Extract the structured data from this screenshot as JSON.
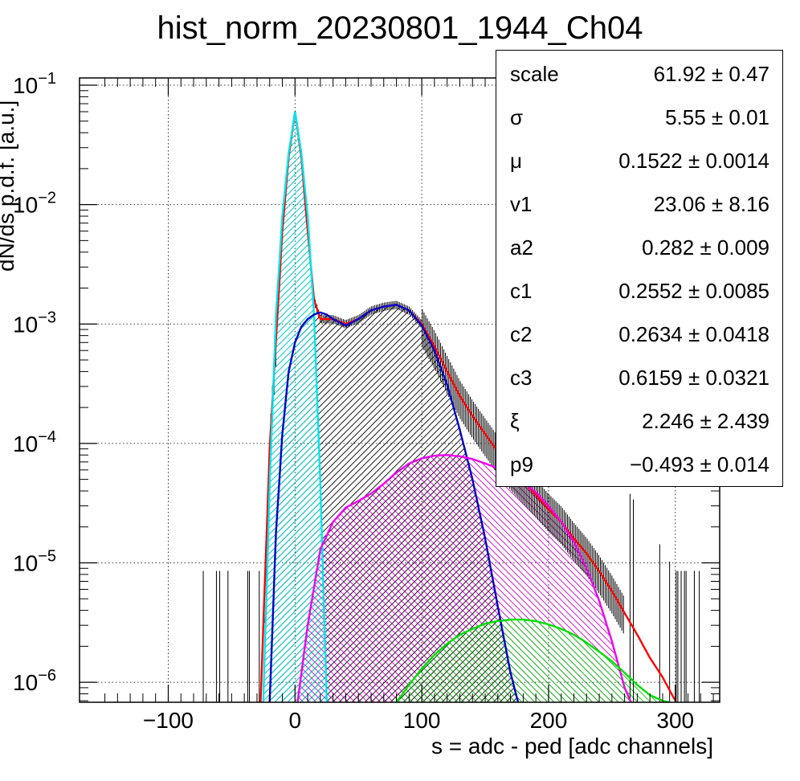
{
  "chart_data": {
    "type": "line",
    "title": "hist_norm_20230801_1944_Ch04",
    "xlabel": "s = adc - ped [adc channels]",
    "ylabel": "dN/ds p.d.f. [a.u.]",
    "xlim": [
      -170,
      335
    ],
    "ylim": [
      6.8e-07,
      0.115
    ],
    "yscale": "log",
    "grid": true,
    "x_ticks": [
      -100,
      0,
      100,
      200,
      300
    ],
    "x_tick_labels": [
      "−100",
      "0",
      "100",
      "200",
      "300"
    ],
    "y_ticks": [
      {
        "value": 1e-06,
        "base": "10",
        "exp": "−6"
      },
      {
        "value": 1e-05,
        "base": "10",
        "exp": "−5"
      },
      {
        "value": 0.0001,
        "base": "10",
        "exp": "−4"
      },
      {
        "value": 0.001,
        "base": "10",
        "exp": "−3"
      },
      {
        "value": 0.01,
        "base": "10",
        "exp": "−2"
      },
      {
        "value": 0.1,
        "base": "10",
        "exp": "−1"
      }
    ],
    "series": [
      {
        "color": "#ff0000",
        "x": [
          -30,
          -20,
          -10,
          -5,
          0,
          5,
          10,
          15,
          20,
          25,
          30,
          40,
          50,
          60,
          70,
          80,
          90,
          100,
          110,
          120,
          130,
          140,
          150,
          160,
          170,
          180,
          190,
          200,
          210,
          220,
          230,
          240,
          250,
          260,
          270,
          280,
          290,
          300
        ],
        "y": [
          1e-07,
          9e-05,
          0.006,
          0.025,
          0.06,
          0.025,
          0.006,
          0.0016,
          0.0011,
          0.0011,
          0.0011,
          0.001,
          0.0011,
          0.0013,
          0.0014,
          0.00145,
          0.0013,
          0.001,
          0.00065,
          0.0004,
          0.00025,
          0.00017,
          0.00012,
          8.5e-05,
          6.3e-05,
          4.8e-05,
          3.7e-05,
          2.8e-05,
          2.2e-05,
          1.6e-05,
          1.2e-05,
          8.5e-06,
          5.8e-06,
          3.8e-06,
          2.5e-06,
          1.6e-06,
          1.1e-06,
          7e-07
        ]
      },
      {
        "color": "#00e5ee",
        "x": [
          -30,
          -25,
          -20,
          -15,
          -10,
          -5,
          0,
          5,
          10,
          15,
          20,
          25,
          30
        ],
        "y": [
          1e-07,
          7e-07,
          4.5e-05,
          0.0012,
          0.008,
          0.027,
          0.06,
          0.027,
          0.008,
          0.0012,
          4.5e-05,
          7e-07,
          1e-07
        ],
        "filled": true,
        "hatch": "cyan"
      },
      {
        "color": "#0000cc",
        "x": [
          -20,
          -15,
          -10,
          -5,
          0,
          5,
          10,
          15,
          20,
          25,
          30,
          40,
          50,
          60,
          70,
          80,
          90,
          100,
          110,
          120,
          130,
          140,
          150,
          160,
          170,
          176
        ],
        "y": [
          6.8e-07,
          1.8e-05,
          0.00012,
          0.0004,
          0.0007,
          0.00095,
          0.0011,
          0.0012,
          0.00125,
          0.0012,
          0.0011,
          0.00097,
          0.0011,
          0.0013,
          0.0014,
          0.00145,
          0.0013,
          0.00097,
          0.0006,
          0.00031,
          0.00013,
          5e-05,
          1.6e-05,
          4.3e-06,
          1.2e-06,
          6.8e-07
        ],
        "filled": true,
        "hatch": "black"
      },
      {
        "color": "#ee00ee",
        "x": [
          2,
          10,
          20,
          30,
          40,
          50,
          60,
          70,
          80,
          90,
          100,
          110,
          120,
          130,
          140,
          150,
          160,
          170,
          180,
          190,
          200,
          210,
          220,
          230,
          240,
          250,
          260,
          265
        ],
        "y": [
          6.8e-07,
          3e-06,
          1.3e-05,
          2.2e-05,
          2.9e-05,
          3.3e-05,
          3.8e-05,
          4.6e-05,
          5.7e-05,
          6.8e-05,
          7.5e-05,
          7.9e-05,
          8e-05,
          7.8e-05,
          7.4e-05,
          6.8e-05,
          6.2e-05,
          5.5e-05,
          4.7e-05,
          3.9e-05,
          3e-05,
          2.2e-05,
          1.5e-05,
          9e-06,
          4.8e-06,
          2.2e-06,
          9e-07,
          6.8e-07
        ],
        "filled": true,
        "hatch": "magenta"
      },
      {
        "color": "#00dd00",
        "x": [
          80,
          90,
          100,
          110,
          120,
          130,
          140,
          150,
          160,
          170,
          180,
          190,
          200,
          210,
          220,
          230,
          240,
          250,
          260,
          270,
          280,
          290,
          295
        ],
        "y": [
          6.8e-07,
          9.5e-07,
          1.3e-06,
          1.7e-06,
          2.1e-06,
          2.5e-06,
          2.8e-06,
          3.1e-06,
          3.25e-06,
          3.35e-06,
          3.35e-06,
          3.25e-06,
          3.05e-06,
          2.8e-06,
          2.5e-06,
          2.15e-06,
          1.8e-06,
          1.5e-06,
          1.2e-06,
          9.5e-07,
          7.8e-07,
          7e-07,
          6.8e-07
        ],
        "filled": true,
        "hatch": "green"
      }
    ]
  },
  "stats": [
    {
      "name": "scale",
      "value": "61.92 ± 0.47"
    },
    {
      "name": "σ",
      "value": "5.55 ± 0.01"
    },
    {
      "name": "μ",
      "value": "0.1522 ± 0.0014"
    },
    {
      "name": "v1",
      "value": "23.06 ± 8.16"
    },
    {
      "name": "a2",
      "value": "0.282 ± 0.009"
    },
    {
      "name": "c1",
      "value": "0.2552 ± 0.0085"
    },
    {
      "name": "c2",
      "value": "0.2634 ± 0.0418"
    },
    {
      "name": "c3",
      "value": "0.6159 ± 0.0321"
    },
    {
      "name": "ξ",
      "value": "2.246 ± 2.439"
    },
    {
      "name": "p9",
      "value": "−0.493 ± 0.014"
    }
  ]
}
